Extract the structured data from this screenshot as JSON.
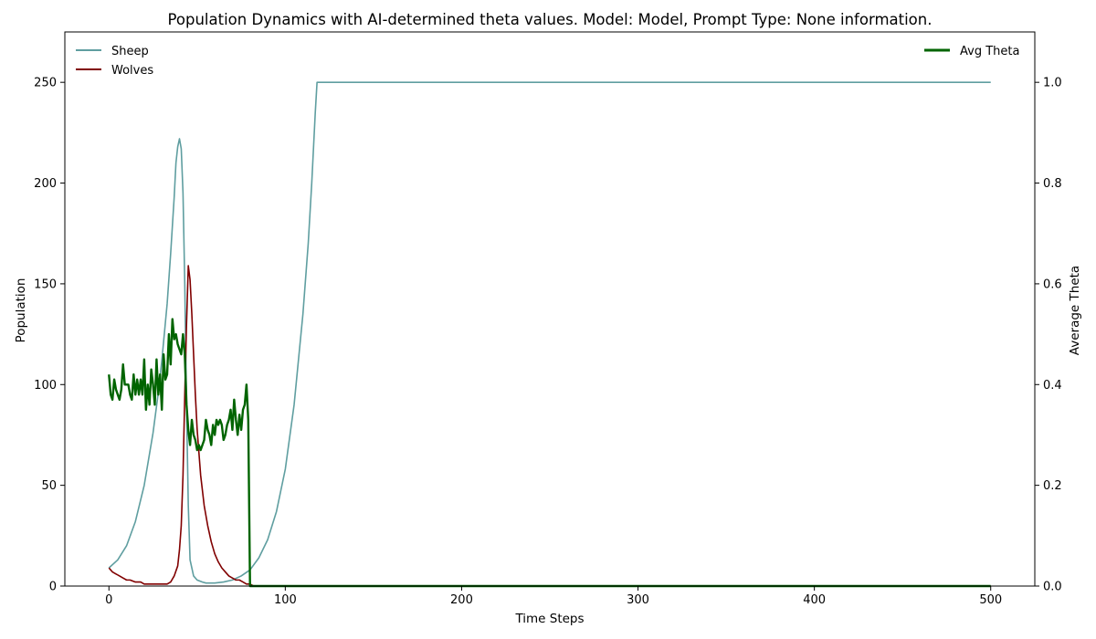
{
  "chart_data": {
    "type": "line",
    "title": "Population Dynamics with AI-determined theta values. Model: Model, Prompt Type: None information.",
    "xlabel": "Time Steps",
    "ylabel": "Population",
    "y2label": "Average Theta",
    "xlim": [
      -25,
      525
    ],
    "ylim": [
      0,
      275
    ],
    "y2lim": [
      0,
      1.1
    ],
    "xticks": [
      0,
      100,
      200,
      300,
      400,
      500
    ],
    "yticks": [
      0,
      50,
      100,
      150,
      200,
      250
    ],
    "y2ticks": [
      0.0,
      0.2,
      0.4,
      0.6,
      0.8,
      1.0
    ],
    "grid": false,
    "legend_left": "top-left",
    "legend_right": "top-right",
    "series": [
      {
        "name": "Sheep",
        "axis": "left",
        "color": "#5f9ea0",
        "x": [
          0,
          5,
          10,
          15,
          20,
          25,
          28,
          30,
          33,
          35,
          37,
          38,
          39,
          40,
          41,
          42,
          43,
          44,
          45,
          46,
          48,
          50,
          53,
          55,
          60,
          65,
          70,
          75,
          80,
          85,
          90,
          95,
          100,
          105,
          110,
          113,
          115,
          117,
          118,
          120,
          150,
          200,
          300,
          400,
          500
        ],
        "y": [
          9,
          13,
          20,
          32,
          50,
          76,
          96,
          112,
          140,
          165,
          193,
          210,
          218,
          222,
          217,
          195,
          150,
          90,
          40,
          13,
          5,
          3,
          2,
          1.5,
          1.5,
          2,
          3,
          5,
          8,
          14,
          23,
          37,
          58,
          90,
          135,
          170,
          200,
          235,
          250,
          250,
          250,
          250,
          250,
          250,
          250
        ]
      },
      {
        "name": "Wolves",
        "axis": "left",
        "color": "#800000",
        "x": [
          0,
          2,
          4,
          6,
          8,
          10,
          12,
          15,
          18,
          20,
          25,
          30,
          33,
          35,
          37,
          39,
          40,
          41,
          42,
          43,
          44,
          45,
          46,
          47,
          48,
          49,
          50,
          52,
          54,
          56,
          58,
          60,
          62,
          64,
          66,
          68,
          70,
          72,
          74,
          76,
          78,
          80,
          82,
          100,
          200,
          300,
          400,
          500
        ],
        "y": [
          9,
          7,
          6,
          5,
          4,
          3,
          3,
          2,
          2,
          1,
          1,
          1,
          1,
          2,
          5,
          10,
          18,
          30,
          55,
          95,
          130,
          159,
          152,
          135,
          115,
          95,
          78,
          55,
          40,
          30,
          22,
          16,
          12,
          9,
          7,
          5,
          4,
          3,
          3,
          2,
          1,
          1,
          0,
          0,
          0,
          0,
          0,
          0
        ]
      },
      {
        "name": "Avg Theta",
        "axis": "right",
        "color": "#006400",
        "x": [
          0,
          1,
          2,
          3,
          4,
          5,
          6,
          7,
          8,
          9,
          10,
          11,
          12,
          13,
          14,
          15,
          16,
          17,
          18,
          19,
          20,
          21,
          22,
          23,
          24,
          25,
          26,
          27,
          28,
          29,
          30,
          31,
          32,
          33,
          34,
          35,
          36,
          37,
          38,
          39,
          40,
          41,
          42,
          43,
          44,
          45,
          46,
          47,
          48,
          49,
          50,
          51,
          52,
          53,
          54,
          55,
          56,
          57,
          58,
          59,
          60,
          61,
          62,
          63,
          64,
          65,
          66,
          67,
          68,
          69,
          70,
          71,
          72,
          73,
          74,
          75,
          76,
          77,
          78,
          79,
          80,
          81,
          82,
          83,
          100,
          200,
          300,
          400,
          500
        ],
        "y": [
          0.42,
          0.38,
          0.37,
          0.41,
          0.39,
          0.38,
          0.37,
          0.39,
          0.44,
          0.4,
          0.4,
          0.4,
          0.38,
          0.37,
          0.42,
          0.38,
          0.41,
          0.38,
          0.41,
          0.38,
          0.45,
          0.35,
          0.4,
          0.36,
          0.43,
          0.4,
          0.36,
          0.45,
          0.38,
          0.42,
          0.35,
          0.46,
          0.41,
          0.42,
          0.5,
          0.44,
          0.53,
          0.49,
          0.5,
          0.48,
          0.47,
          0.46,
          0.5,
          0.46,
          0.36,
          0.31,
          0.28,
          0.33,
          0.3,
          0.29,
          0.27,
          0.28,
          0.27,
          0.28,
          0.29,
          0.33,
          0.31,
          0.3,
          0.28,
          0.32,
          0.3,
          0.33,
          0.32,
          0.33,
          0.32,
          0.29,
          0.3,
          0.32,
          0.33,
          0.35,
          0.31,
          0.37,
          0.33,
          0.3,
          0.34,
          0.31,
          0.35,
          0.36,
          0.4,
          0.33,
          0.0,
          0.0,
          0.0,
          0.0,
          0.0,
          0.0,
          0.0,
          0.0,
          0.0
        ]
      }
    ]
  }
}
